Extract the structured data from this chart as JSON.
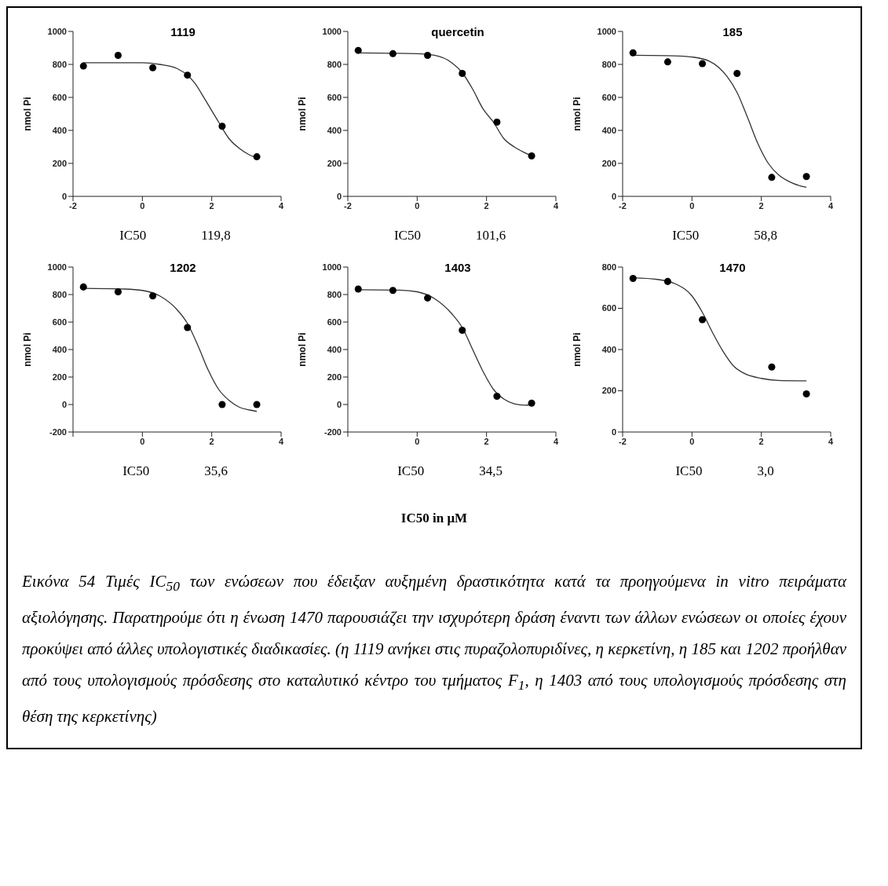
{
  "chart_data": [
    {
      "type": "scatter",
      "title": "1119",
      "ylabel": "nmol Pi",
      "xlim": [
        -2,
        4
      ],
      "xticks": [
        -2,
        0,
        2,
        4
      ],
      "ylim": [
        0,
        1000
      ],
      "yticks": [
        0,
        200,
        400,
        600,
        800,
        1000
      ],
      "annotations": [
        "IC50",
        "119,8"
      ],
      "series": [
        {
          "type": "scatter",
          "color": "#000000",
          "marker": "circle",
          "x": [
            -1.7,
            -0.7,
            0.3,
            1.3,
            2.3,
            3.3
          ],
          "values": [
            790,
            855,
            780,
            735,
            425,
            240
          ]
        },
        {
          "type": "line",
          "color": "#333333",
          "marker": "none",
          "line_style": "solid",
          "x": [
            -1.7,
            0,
            0.5,
            1,
            1.3,
            1.5,
            1.8,
            2,
            2.2,
            2.5,
            2.8,
            3.1,
            3.3
          ],
          "values": [
            810,
            810,
            800,
            775,
            735,
            690,
            590,
            520,
            450,
            350,
            290,
            250,
            235
          ]
        }
      ]
    },
    {
      "type": "scatter",
      "title": "quercetin",
      "ylabel": "nmol Pi",
      "xlim": [
        -2,
        4
      ],
      "xticks": [
        -2,
        0,
        2,
        4
      ],
      "ylim": [
        0,
        1000
      ],
      "yticks": [
        0,
        200,
        400,
        600,
        800,
        1000
      ],
      "annotations": [
        "IC50",
        "101,6"
      ],
      "series": [
        {
          "type": "scatter",
          "color": "#000000",
          "marker": "circle",
          "x": [
            -1.7,
            -0.7,
            0.3,
            1.3,
            2.3,
            3.3
          ],
          "values": [
            885,
            865,
            855,
            745,
            450,
            245
          ]
        },
        {
          "type": "line",
          "color": "#333333",
          "marker": "none",
          "line_style": "solid",
          "x": [
            -1.7,
            0,
            0.5,
            1,
            1.3,
            1.6,
            1.9,
            2.2,
            2.5,
            2.8,
            3.1,
            3.3
          ],
          "values": [
            870,
            865,
            855,
            810,
            750,
            650,
            530,
            450,
            350,
            300,
            265,
            245
          ]
        }
      ]
    },
    {
      "type": "scatter",
      "title": "185",
      "ylabel": "nmol Pi",
      "xlim": [
        -2,
        4
      ],
      "xticks": [
        -2,
        0,
        2,
        4
      ],
      "ylim": [
        0,
        1000
      ],
      "yticks": [
        0,
        200,
        400,
        600,
        800,
        1000
      ],
      "annotations": [
        "IC50",
        "58,8"
      ],
      "series": [
        {
          "type": "scatter",
          "color": "#000000",
          "marker": "circle",
          "x": [
            -1.7,
            -0.7,
            0.3,
            1.3,
            2.3,
            3.3
          ],
          "values": [
            870,
            815,
            805,
            745,
            115,
            120
          ]
        },
        {
          "type": "line",
          "color": "#333333",
          "marker": "none",
          "line_style": "solid",
          "x": [
            -1.7,
            -0.5,
            0,
            0.5,
            1,
            1.3,
            1.6,
            1.9,
            2.2,
            2.5,
            2.8,
            3.1,
            3.3
          ],
          "values": [
            855,
            852,
            845,
            820,
            730,
            630,
            480,
            320,
            200,
            130,
            90,
            65,
            55
          ]
        }
      ]
    },
    {
      "type": "scatter",
      "title": "1202",
      "ylabel": "nmol Pi",
      "xlim": [
        -2,
        4
      ],
      "xticks": [
        {
          "value": -2,
          "label": null
        },
        0,
        2,
        4
      ],
      "ylim": [
        -200,
        1000
      ],
      "yticks": [
        -200,
        0,
        200,
        400,
        600,
        800,
        1000
      ],
      "annotations": [
        "IC50",
        "35,6"
      ],
      "series": [
        {
          "type": "scatter",
          "color": "#000000",
          "marker": "circle",
          "x": [
            -1.7,
            -0.7,
            0.3,
            1.3,
            2.3,
            3.3
          ],
          "values": [
            855,
            820,
            790,
            560,
            0,
            0
          ]
        },
        {
          "type": "line",
          "color": "#333333",
          "marker": "none",
          "line_style": "solid",
          "x": [
            -1.7,
            -0.5,
            0,
            0.5,
            1,
            1.3,
            1.6,
            1.9,
            2.2,
            2.5,
            2.8,
            3.1,
            3.3
          ],
          "values": [
            845,
            840,
            830,
            790,
            690,
            590,
            430,
            250,
            110,
            30,
            -20,
            -40,
            -50
          ]
        }
      ]
    },
    {
      "type": "scatter",
      "title": "1403",
      "ylabel": "nmol Pi",
      "xlim": [
        -2,
        4
      ],
      "xticks": [
        {
          "value": -2,
          "label": null
        },
        0,
        2,
        4
      ],
      "ylim": [
        -200,
        1000
      ],
      "yticks": [
        -200,
        0,
        200,
        400,
        600,
        800,
        1000
      ],
      "annotations": [
        "IC50",
        "34,5"
      ],
      "series": [
        {
          "type": "scatter",
          "color": "#000000",
          "marker": "circle",
          "x": [
            -1.7,
            -0.7,
            0.3,
            1.3,
            2.3,
            3.3
          ],
          "values": [
            840,
            830,
            775,
            540,
            60,
            10
          ]
        },
        {
          "type": "line",
          "color": "#333333",
          "marker": "none",
          "line_style": "solid",
          "x": [
            -1.7,
            -0.5,
            0,
            0.5,
            1,
            1.3,
            1.6,
            1.9,
            2.2,
            2.5,
            2.8,
            3.1,
            3.3
          ],
          "values": [
            835,
            832,
            820,
            770,
            660,
            560,
            400,
            240,
            110,
            40,
            5,
            -5,
            0
          ]
        }
      ]
    },
    {
      "type": "scatter",
      "title": "1470",
      "ylabel": "nmol Pi",
      "xlim": [
        -2,
        4
      ],
      "xticks": [
        -2,
        0,
        2,
        4
      ],
      "ylim": [
        0,
        800
      ],
      "yticks": [
        0,
        200,
        400,
        600,
        800
      ],
      "annotations": [
        "IC50",
        "3,0"
      ],
      "series": [
        {
          "type": "scatter",
          "color": "#000000",
          "marker": "circle",
          "x": [
            -1.7,
            -0.7,
            0.3,
            2.3,
            3.3
          ],
          "values": [
            745,
            730,
            545,
            315,
            185
          ]
        },
        {
          "type": "line",
          "color": "#333333",
          "marker": "none",
          "line_style": "solid",
          "x": [
            -1.7,
            -1,
            -0.5,
            0,
            0.3,
            0.6,
            0.9,
            1.2,
            1.5,
            2,
            2.5,
            3.3
          ],
          "values": [
            748,
            740,
            720,
            660,
            580,
            480,
            390,
            320,
            285,
            260,
            250,
            248
          ]
        }
      ]
    },
    {
      "type": "other",
      "annotations": [
        "IC50 in μM",
        "Εικόνα 54 Τιμές IC$_{50}$ των ενώσεων που έδειξαν αυξημένη δραστικότητα κατά τα προηγούμενα in vitro πειράματα αξιολόγησης. Παρατηρούμε ότι η ένωση 1470 παρουσιάζει την ισχυρότερη δράση έναντι των άλλων ενώσεων οι οποίες έχουν προκύψει από άλλες υπολογιστικές διαδικασίες. (η 1119 ανήκει στις πυραζολοπυριδίνες, η κερκετίνη, η 185 και 1202 προήλθαν από τους υπολογισμούς πρόσδεσης στο καταλυτικό κέντρο του τμήματος F$_{1}$, η 1403 από τους υπολογισμούς πρόσδεσης στη θέση της κερκετίνης)"
      ]
    }
  ]
}
